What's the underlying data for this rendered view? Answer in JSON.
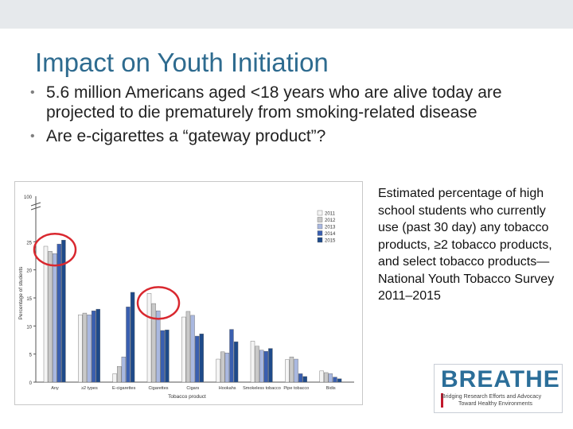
{
  "slide": {
    "title": "Impact on Youth Initiation",
    "bullets": [
      "5.6 million Americans aged <18 years who are alive today are projected to die prematurely from smoking-related disease",
      "Are e-cigarettes a “gateway product”?"
    ],
    "caption": "Estimated percentage of high school students who currently use (past 30 day) any tobacco products, ≥2 tobacco products, and select tobacco products—National Youth Tobacco Survey 2011–2015"
  },
  "logo": {
    "word": "BREATHE",
    "tagline_1": "Bridging Research Efforts and Advocacy",
    "tagline_2": "Toward Healthy Environments"
  },
  "colors": {
    "title": "#2e6b8f",
    "highlight_circle": "#d9282f",
    "series": [
      "#f4f4f4",
      "#c9c9c9",
      "#a9b8e0",
      "#3a5fb0",
      "#1e4a8a"
    ]
  },
  "chart_data": {
    "type": "bar",
    "ylabel": "Percentage of students",
    "xlabel": "Tobacco product",
    "categories": [
      "Any",
      "≥2 types",
      "E-cigarettes",
      "Cigarettes",
      "Cigars",
      "Hookahs",
      "Smokeless tobacco",
      "Pipe tobacco",
      "Bidis"
    ],
    "yticks": [
      "0",
      "5",
      "10",
      "15",
      "20",
      "25",
      "100"
    ],
    "ylim": [
      0,
      30
    ],
    "axis_break": true,
    "legend_position": "top-right",
    "series": [
      {
        "name": "2011",
        "values": [
          24.2,
          12.0,
          1.5,
          15.8,
          11.6,
          4.1,
          7.3,
          4.0,
          2.0
        ]
      },
      {
        "name": "2012",
        "values": [
          23.3,
          12.3,
          2.8,
          14.0,
          12.6,
          5.4,
          6.4,
          4.5,
          1.7
        ]
      },
      {
        "name": "2013",
        "values": [
          22.9,
          12.0,
          4.5,
          12.7,
          11.9,
          5.2,
          5.7,
          4.1,
          1.5
        ]
      },
      {
        "name": "2014",
        "values": [
          24.6,
          12.7,
          13.4,
          9.2,
          8.2,
          9.4,
          5.5,
          1.5,
          0.9
        ]
      },
      {
        "name": "2015",
        "values": [
          25.3,
          13.0,
          16.0,
          9.3,
          8.6,
          7.2,
          6.0,
          1.0,
          0.6
        ]
      }
    ],
    "highlighted_groups": [
      "Any",
      "Cigarettes"
    ]
  }
}
